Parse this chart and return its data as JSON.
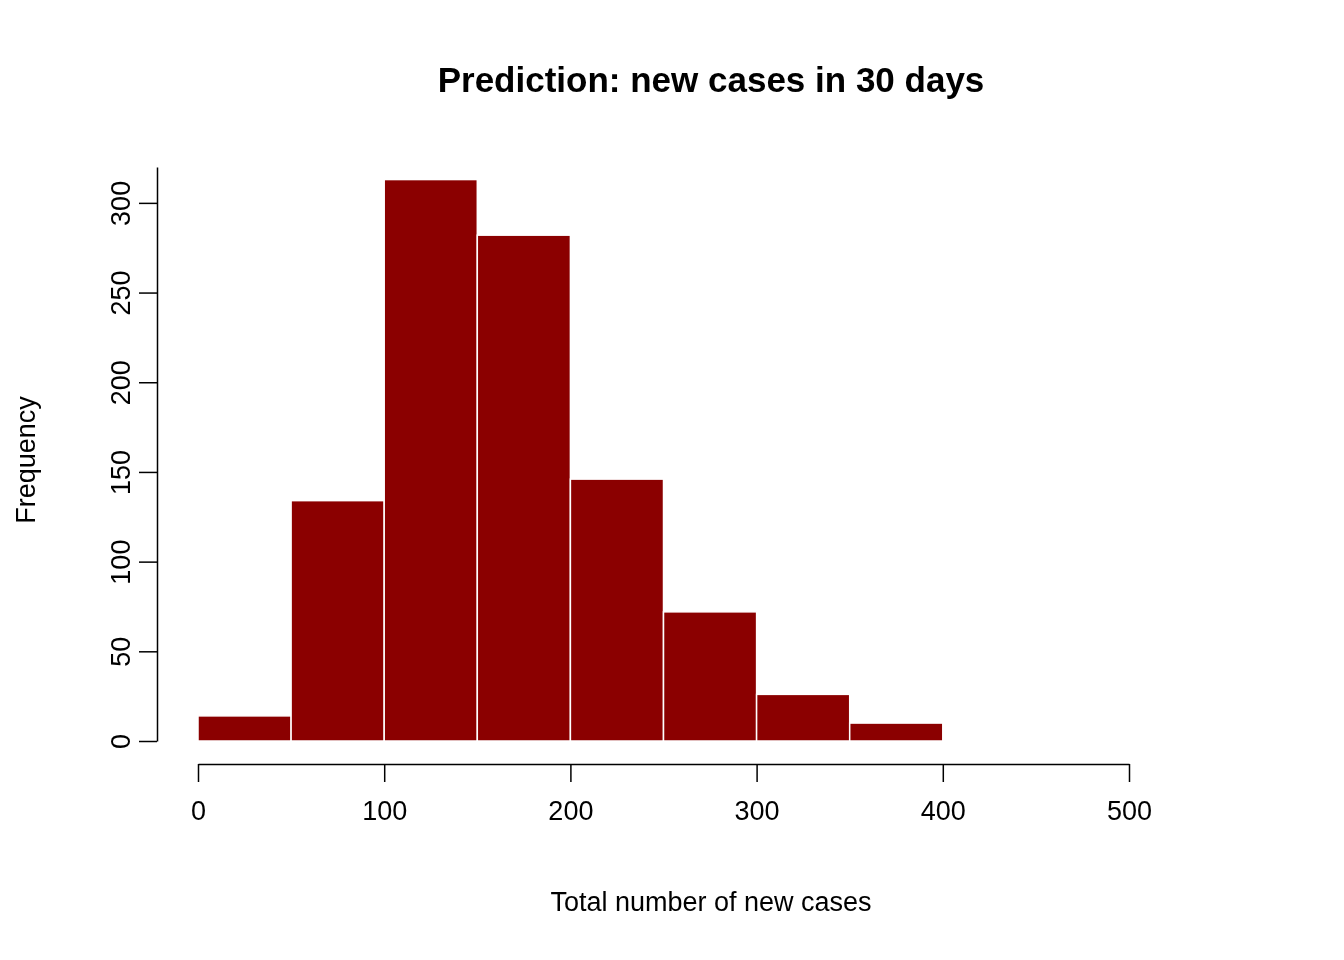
{
  "chart_data": {
    "type": "histogram",
    "title": "Prediction: new cases in 30 days",
    "xlabel": "Total number of new cases",
    "ylabel": "Frequency",
    "bins": [
      0,
      50,
      100,
      150,
      200,
      250,
      300,
      350,
      400
    ],
    "values": [
      14,
      134,
      313,
      282,
      146,
      72,
      26,
      10
    ],
    "color": "#8b0000",
    "xlim": [
      0,
      500
    ],
    "xticks": [
      0,
      100,
      200,
      300,
      400,
      500
    ],
    "ylim": [
      0,
      320
    ],
    "yticks": [
      0,
      50,
      100,
      150,
      200,
      250,
      300
    ],
    "grid": false
  }
}
